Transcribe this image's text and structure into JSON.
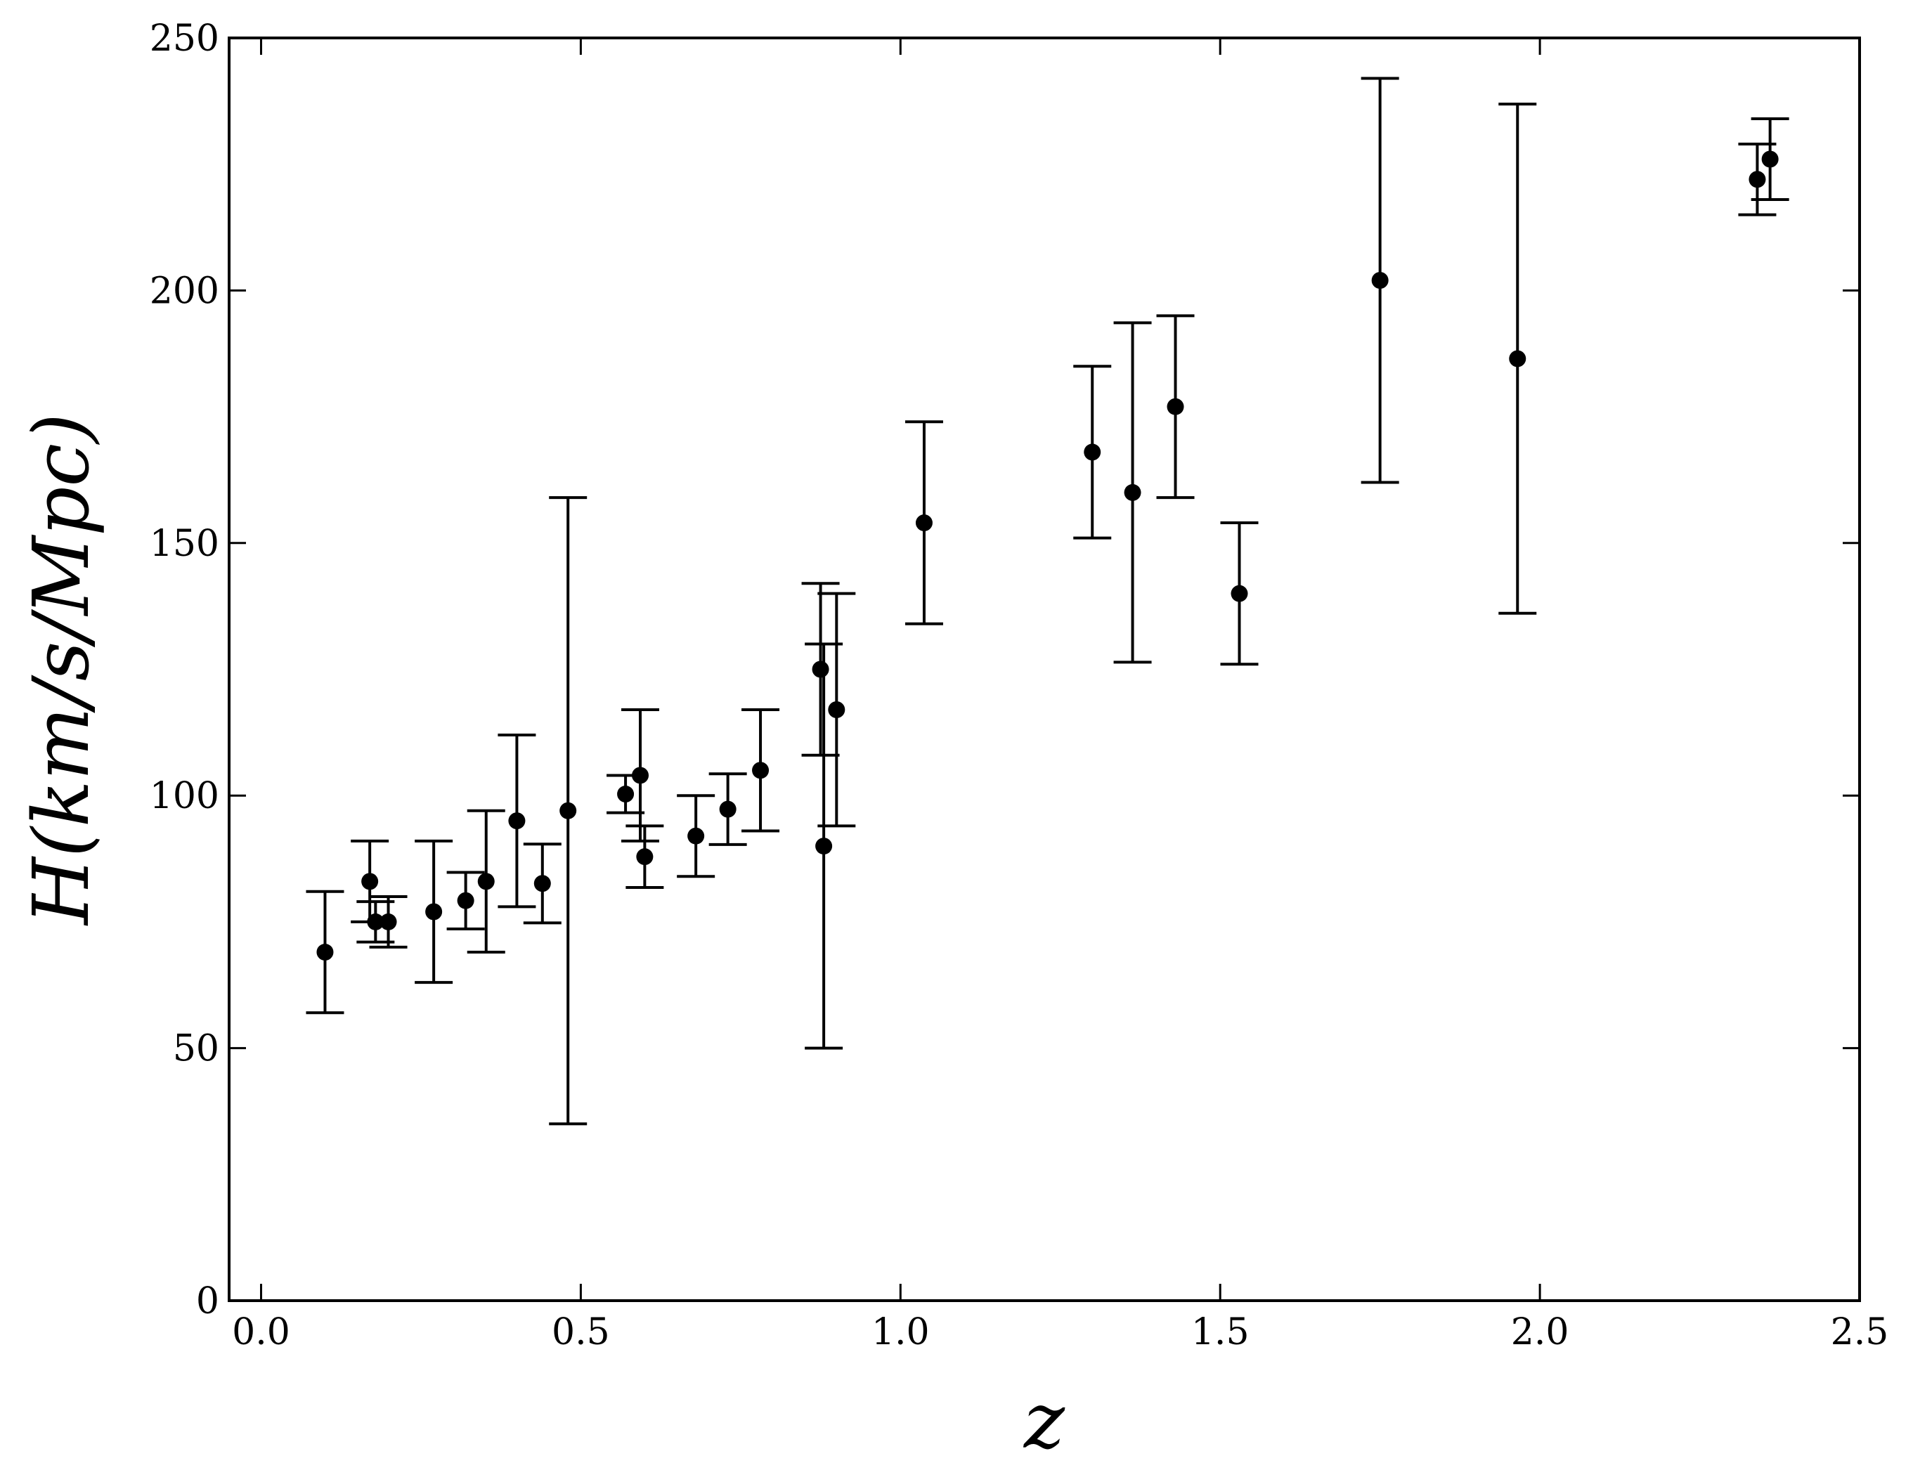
{
  "chart_data": {
    "type": "errorbar",
    "x_label": "z",
    "y_label": "H(km/s/Mpc)",
    "xlim": [
      -0.05,
      2.5
    ],
    "ylim": [
      0,
      250
    ],
    "xticks": [
      {
        "value": 0,
        "label": "0.0"
      },
      0.5,
      {
        "value": 1,
        "label": "1.0"
      },
      1.5,
      {
        "value": 2,
        "label": "2.0"
      },
      2.5
    ],
    "yticks": [
      0,
      50,
      100,
      150,
      200,
      250
    ],
    "color": "#000000",
    "x": [
      0.1,
      0.17,
      0.179,
      0.199,
      0.27,
      0.32,
      0.352,
      0.4,
      0.44,
      0.48,
      0.57,
      0.593,
      0.6,
      0.68,
      0.73,
      0.781,
      0.875,
      0.88,
      0.9,
      1.037,
      1.3,
      1.363,
      1.43,
      1.53,
      1.75,
      1.965,
      2.34,
      2.36
    ],
    "values": [
      69,
      83,
      75,
      75,
      77,
      79.2,
      83,
      95,
      82.6,
      97,
      100.3,
      104,
      87.9,
      92,
      97.3,
      105,
      125,
      90,
      117,
      154,
      168,
      160,
      177,
      140,
      202,
      186.5,
      222,
      226
    ],
    "errors": [
      12,
      8,
      4,
      5,
      14,
      5.6,
      14,
      17,
      7.8,
      62,
      3.7,
      13,
      6.1,
      8,
      7,
      12,
      17,
      40,
      23,
      20,
      17,
      33.6,
      18,
      14,
      40,
      50.4,
      7,
      8
    ]
  }
}
